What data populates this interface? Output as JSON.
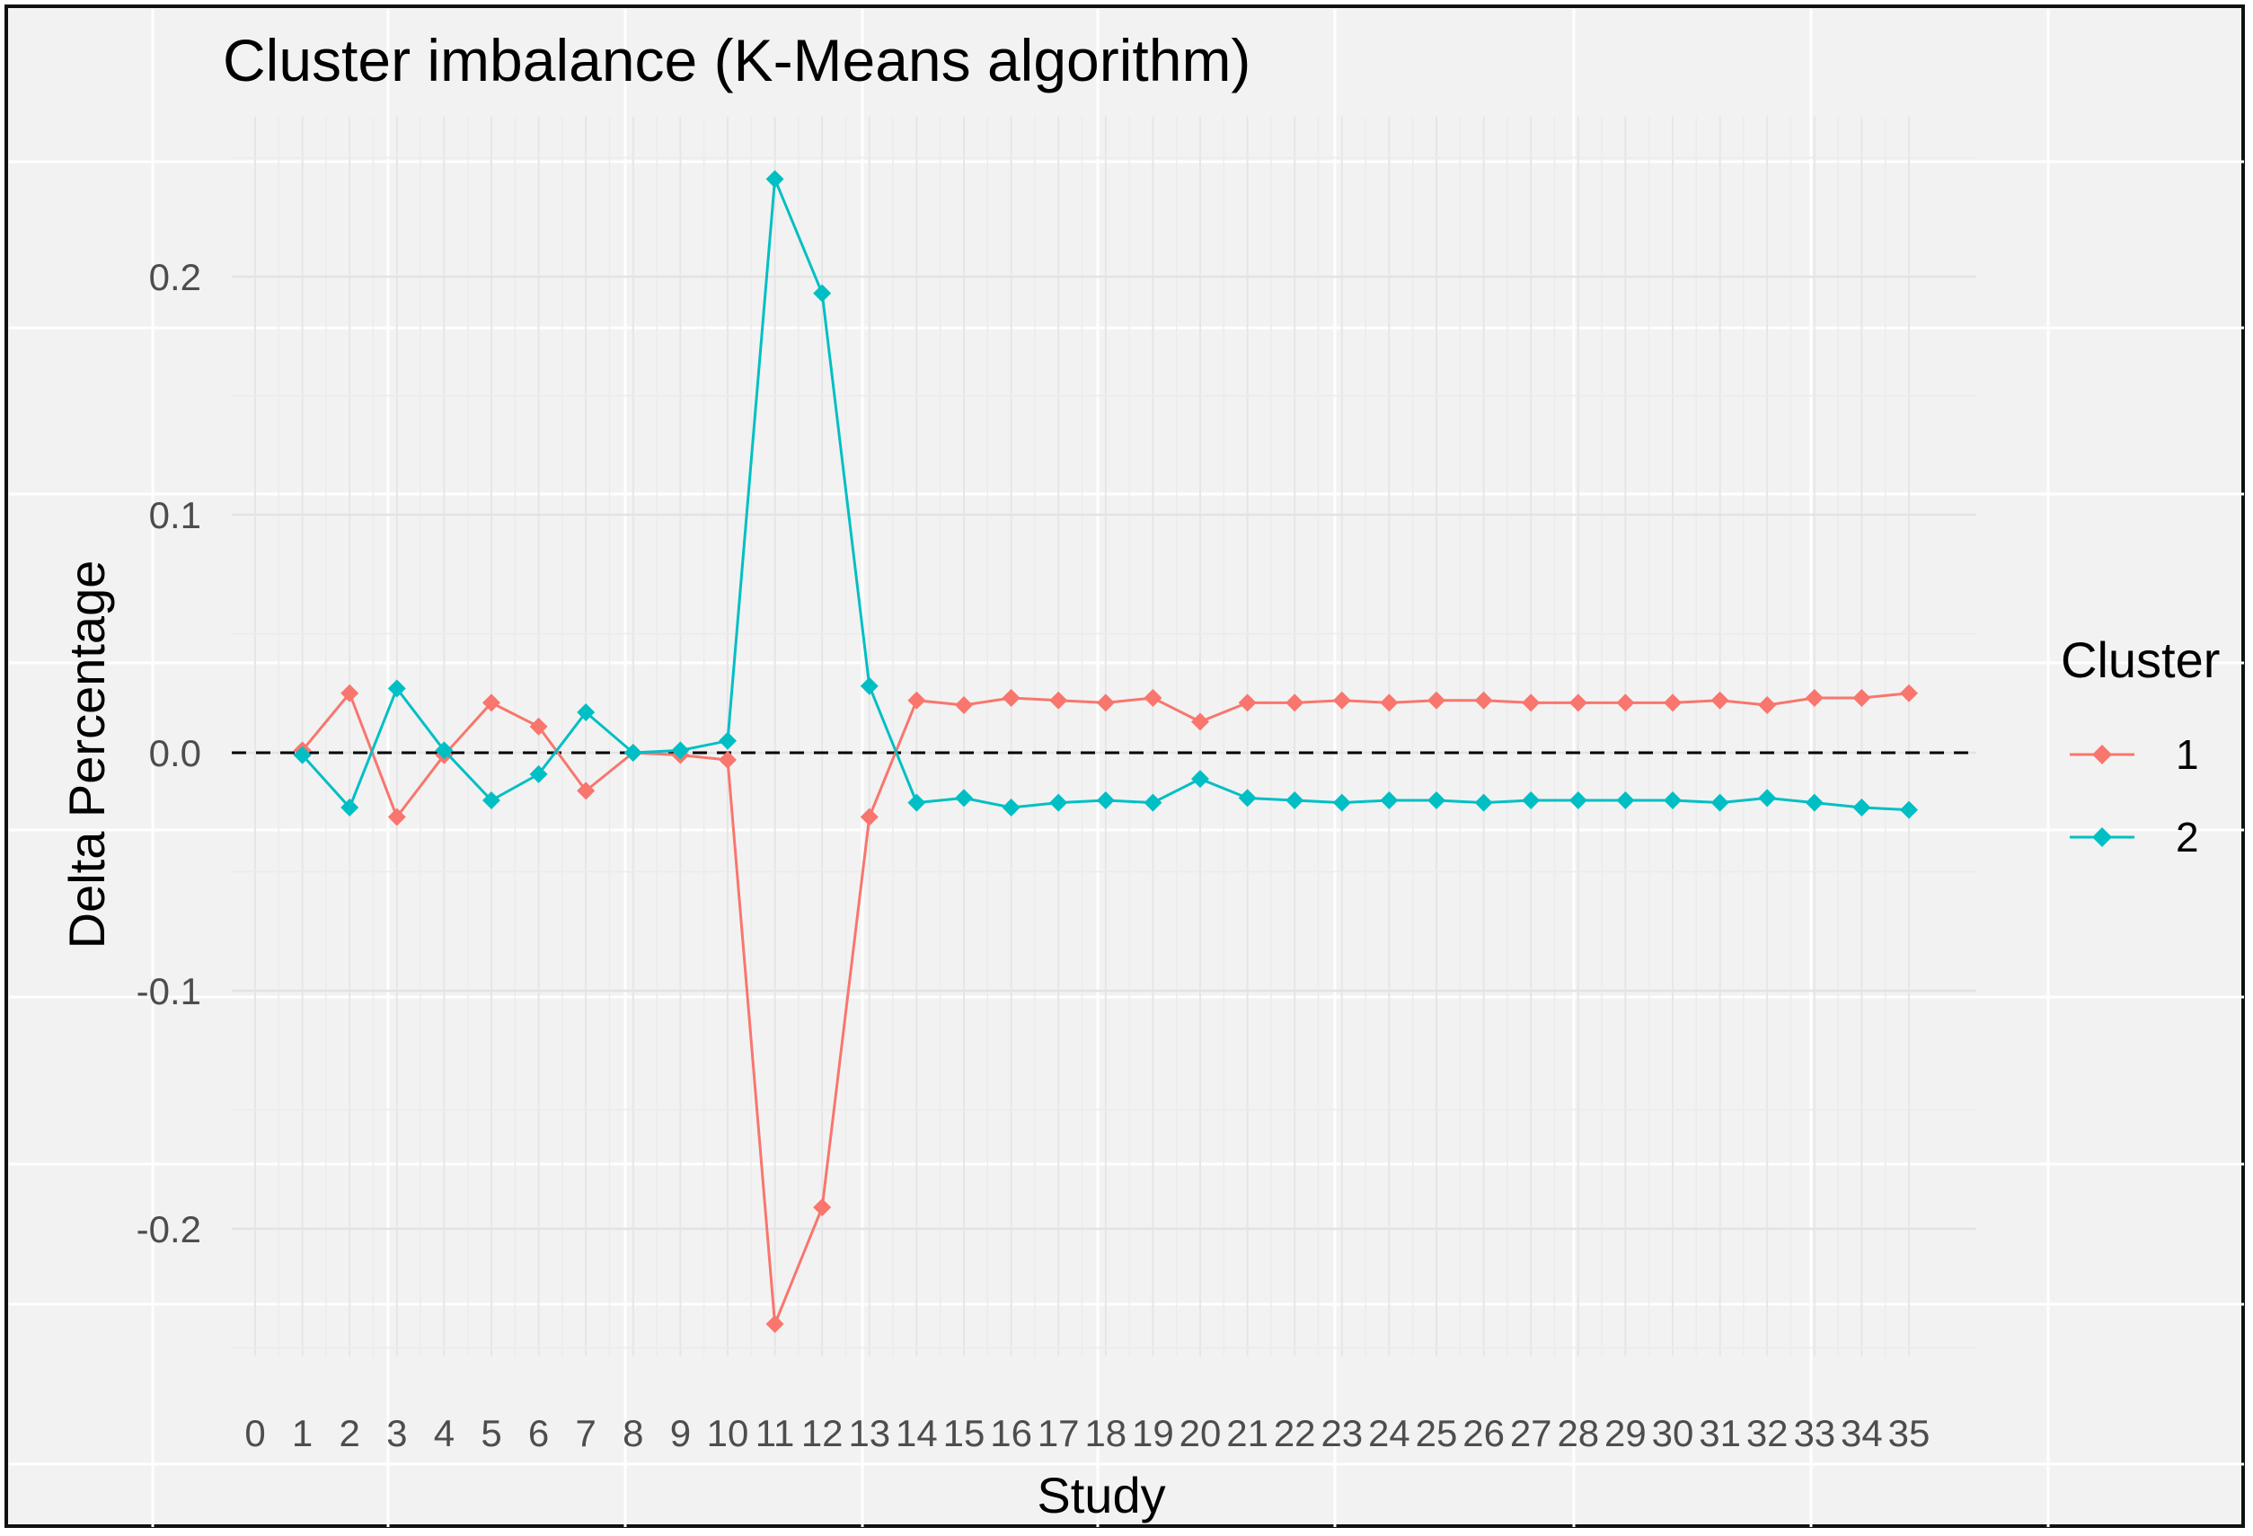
{
  "chart_data": {
    "type": "line",
    "title": "Cluster imbalance (K-Means algorithm)",
    "xlabel": "Study",
    "ylabel": "Delta Percentage",
    "x_ticks": [
      "0",
      "1",
      "2",
      "3",
      "4",
      "5",
      "6",
      "7",
      "8",
      "9",
      "10",
      "11",
      "12",
      "13",
      "14",
      "15",
      "16",
      "17",
      "18",
      "19",
      "20",
      "21",
      "22",
      "23",
      "24",
      "25",
      "26",
      "27",
      "28",
      "29",
      "30",
      "31",
      "32",
      "33",
      "34",
      "35"
    ],
    "y_ticks": [
      0.2,
      0.1,
      0.0,
      -0.1,
      -0.2
    ],
    "y_tick_labels": [
      "0.2",
      "0.1",
      "0.0",
      "-0.1",
      "-0.2"
    ],
    "xlim": [
      0,
      35
    ],
    "ylim": [
      -0.25,
      0.25
    ],
    "grid": true,
    "reference_line": {
      "y": 0,
      "style": "dashed"
    },
    "legend": {
      "title": "Cluster",
      "position": "right"
    },
    "x": [
      1,
      2,
      3,
      4,
      5,
      6,
      7,
      8,
      9,
      10,
      11,
      12,
      13,
      14,
      15,
      16,
      17,
      18,
      19,
      20,
      21,
      22,
      23,
      24,
      25,
      26,
      27,
      28,
      29,
      30,
      31,
      32,
      33,
      34,
      35
    ],
    "series": [
      {
        "name": "1",
        "color": "#F8766D",
        "values": [
          0.001,
          0.025,
          -0.027,
          -0.001,
          0.021,
          0.011,
          -0.016,
          0.0,
          -0.001,
          -0.003,
          -0.24,
          -0.191,
          -0.027,
          0.022,
          0.02,
          0.023,
          0.022,
          0.021,
          0.023,
          0.013,
          0.021,
          0.021,
          0.022,
          0.021,
          0.022,
          0.022,
          0.021,
          0.021,
          0.021,
          0.021,
          0.022,
          0.02,
          0.023,
          0.023,
          0.025
        ]
      },
      {
        "name": "2",
        "color": "#00BFC4",
        "values": [
          -0.001,
          -0.023,
          0.027,
          0.001,
          -0.02,
          -0.009,
          0.017,
          0.0,
          0.001,
          0.005,
          0.241,
          0.193,
          0.028,
          -0.021,
          -0.019,
          -0.023,
          -0.021,
          -0.02,
          -0.021,
          -0.011,
          -0.019,
          -0.02,
          -0.021,
          -0.02,
          -0.02,
          -0.021,
          -0.02,
          -0.02,
          -0.02,
          -0.02,
          -0.021,
          -0.019,
          -0.021,
          -0.023,
          -0.024
        ]
      }
    ]
  }
}
